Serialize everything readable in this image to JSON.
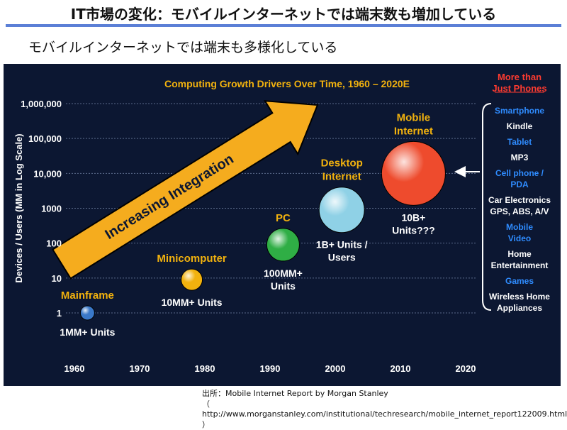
{
  "page": {
    "title": "IT市場の変化：モバイルインターネットでは端末数も増加している",
    "subtitle": "モバイルインターネットでは端末も多様化している",
    "source_line1": "出所：Mobile Internet Report by Morgan Stanley",
    "source_line2": "（ http://www.morganstanley.com/institutional/techresearch/mobile_internet_report122009.html ）"
  },
  "chart_data": {
    "type": "scatter",
    "title": "Computing Growth Drivers Over Time, 1960 – 2020E",
    "xlabel": "",
    "ylabel": "Devices / Users (MM in Log Scale)",
    "xlim": [
      1960,
      2020
    ],
    "ylim": [
      1,
      1000000
    ],
    "y_scale": "log",
    "grid": true,
    "x_ticks": [
      "1960",
      "1970",
      "1980",
      "1990",
      "2000",
      "2010",
      "2020"
    ],
    "y_ticks": [
      "1",
      "10",
      "100",
      "1000",
      "10,000",
      "100,000",
      "1,000,000"
    ],
    "eras": [
      {
        "label": "Mainframe",
        "units": "1MM+ Units",
        "year": 1962,
        "value": 1,
        "color": "#3a78c8"
      },
      {
        "label": "Minicomputer",
        "units": "10MM+ Units",
        "year": 1978,
        "value": 9,
        "color": "#f2b20e"
      },
      {
        "label": "PC",
        "units": "100MM+\nUnits",
        "year": 1992,
        "value": 90,
        "color": "#2fae45"
      },
      {
        "label": "Desktop\nInternet",
        "units": "1B+ Units /\nUsers",
        "year": 2001,
        "value": 900,
        "color": "#8fd1e6"
      },
      {
        "label": "Mobile\nInternet",
        "units": "10B+\nUnits???",
        "year": 2012,
        "value": 10000,
        "color": "#ee4b2d"
      }
    ],
    "arrow_label": "Increasing Integration",
    "side_panel": {
      "heading": "More than\nJust Phones",
      "items": [
        {
          "text": "Smartphone",
          "color": "#2f8cff"
        },
        {
          "text": "Kindle",
          "color": "#ffffff"
        },
        {
          "text": "Tablet",
          "color": "#2f8cff"
        },
        {
          "text": "MP3",
          "color": "#ffffff"
        },
        {
          "text": "Cell phone /\nPDA",
          "color": "#2f8cff"
        },
        {
          "text": "Car Electronics\nGPS, ABS, A/V",
          "color": "#ffffff"
        },
        {
          "text": "Mobile\nVideo",
          "color": "#2f8cff"
        },
        {
          "text": "Home\nEntertainment",
          "color": "#ffffff"
        },
        {
          "text": "Games",
          "color": "#2f8cff"
        },
        {
          "text": "Wireless Home\nAppliances",
          "color": "#ffffff"
        }
      ]
    },
    "colors": {
      "background": "#0c1732",
      "title": "#f2b20e",
      "heading": "#ff3b30",
      "arrow": "#f5ac1e",
      "grid": "#5a6a8a"
    }
  }
}
